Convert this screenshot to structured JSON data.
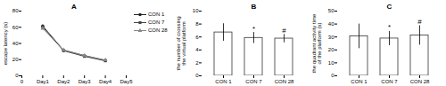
{
  "chart_data": [
    {
      "type": "line",
      "title": "A",
      "ylabel": "escape latency (s)",
      "x": [
        1,
        2,
        3,
        4
      ],
      "xlim": [
        0,
        5
      ],
      "xticks": [
        0,
        {
          "value": 1,
          "label": "Day1"
        },
        {
          "value": 2,
          "label": "Day2"
        },
        {
          "value": 3,
          "label": "Day3"
        },
        {
          "value": 4,
          "label": "Day4"
        },
        {
          "value": 5,
          "label": "Day5"
        }
      ],
      "ylim": [
        0,
        80
      ],
      "yticks": [
        0,
        20,
        40,
        60,
        80
      ],
      "series": [
        {
          "name": "CON 1",
          "color": "#222222",
          "marker": "circle",
          "values": [
            61.5,
            31.5,
            25,
            19
          ]
        },
        {
          "name": "CON 7",
          "color": "#444444",
          "marker": "square",
          "values": [
            60,
            31,
            24,
            18.5
          ]
        },
        {
          "name": "CON 28",
          "color": "#888888",
          "marker": "triangle",
          "values": [
            58.5,
            32,
            25,
            19.5
          ]
        }
      ],
      "legend": "right",
      "grid": false
    },
    {
      "type": "bar",
      "title": "B",
      "ylabel": "the number of crossing\nthe virtual platform",
      "categories": [
        "CON 1",
        "CON 7",
        "CON 28"
      ],
      "values": [
        6.7,
        5.85,
        5.75
      ],
      "errors": [
        1.35,
        0.85,
        0.65
      ],
      "annotations": [
        {
          "category": "CON 7",
          "text": "*"
        },
        {
          "category": "CON 28",
          "text": "#"
        }
      ],
      "color": "#333333",
      "ylim": [
        0,
        10
      ],
      "yticks": [
        0,
        2,
        4,
        6,
        8,
        10
      ],
      "grid": false
    },
    {
      "type": "bar",
      "title": "C",
      "ylabel": "the quadrant activity time\nof the platform (s)",
      "categories": [
        "CON 1",
        "CON 7",
        "CON 28"
      ],
      "values": [
        30.5,
        28.8,
        31.2
      ],
      "errors": [
        9.5,
        5.5,
        7.5
      ],
      "annotations": [
        {
          "category": "CON 7",
          "text": "*"
        },
        {
          "category": "CON 28",
          "text": "#"
        }
      ],
      "color": "#333333",
      "ylim": [
        0,
        50
      ],
      "yticks": [
        0,
        10,
        20,
        30,
        40,
        50
      ],
      "grid": false
    }
  ]
}
